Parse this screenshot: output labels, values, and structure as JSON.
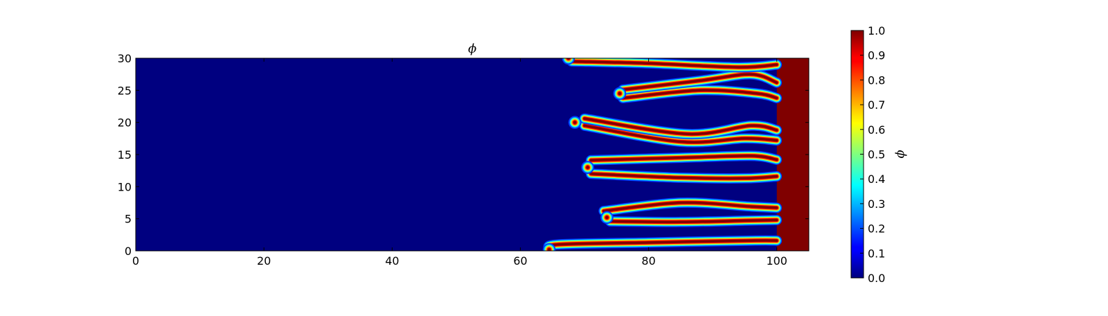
{
  "chart_data": {
    "type": "heatmap",
    "title": "ϕ",
    "xlabel": "",
    "ylabel": "",
    "xlim": [
      0,
      105
    ],
    "ylim": [
      0,
      30
    ],
    "x_ticks": [
      0,
      20,
      40,
      60,
      80,
      100
    ],
    "y_ticks": [
      0,
      5,
      10,
      15,
      20,
      25,
      30
    ],
    "x_tick_labels": [
      "0",
      "20",
      "40",
      "60",
      "80",
      "100"
    ],
    "y_tick_labels": [
      "0",
      "5",
      "10",
      "15",
      "20",
      "25",
      "30"
    ],
    "grid": false,
    "colormap": "jet",
    "background_value": 0.0,
    "filled_value": 1.0,
    "colorbar": {
      "label": "ϕ",
      "range": [
        0.0,
        1.0
      ],
      "ticks": [
        0.0,
        0.1,
        0.2,
        0.3,
        0.4,
        0.5,
        0.6,
        0.7,
        0.8,
        0.9,
        1.0
      ],
      "tick_labels": [
        "0.0",
        "0.1",
        "0.2",
        "0.3",
        "0.4",
        "0.5",
        "0.6",
        "0.7",
        "0.8",
        "0.9",
        "1.0"
      ]
    },
    "right_region_x_start": 100,
    "fingers": [
      {
        "points": [
          [
            100,
            1.6
          ],
          [
            96,
            1.6
          ],
          [
            80,
            1.3
          ],
          [
            66,
            1.0
          ],
          [
            64.5,
            0.4
          ]
        ],
        "tip": [
          64.5,
          0.2
        ]
      },
      {
        "points": [
          [
            100,
            4.8
          ],
          [
            95,
            4.7
          ],
          [
            85,
            4.5
          ],
          [
            74,
            4.6
          ]
        ],
        "tip": [
          73.5,
          5.2
        ]
      },
      {
        "points": [
          [
            100,
            6.7
          ],
          [
            96,
            6.9
          ],
          [
            85,
            7.5
          ],
          [
            73,
            6.2
          ]
        ],
        "tip": [
          73.5,
          5.2
        ]
      },
      {
        "points": [
          [
            100,
            11.6
          ],
          [
            95,
            11.3
          ],
          [
            85,
            11.4
          ],
          [
            71,
            12.0
          ]
        ],
        "tip": [
          70.5,
          13.0
        ]
      },
      {
        "points": [
          [
            100,
            14.2
          ],
          [
            96,
            14.8
          ],
          [
            85,
            14.5
          ],
          [
            71,
            14.1
          ]
        ],
        "tip": [
          70.5,
          13.0
        ]
      },
      {
        "points": [
          [
            100,
            17.2
          ],
          [
            95,
            17.5
          ],
          [
            85,
            17.0
          ],
          [
            70,
            19.5
          ]
        ],
        "tip": [
          68.5,
          20.0
        ]
      },
      {
        "points": [
          [
            100,
            18.8
          ],
          [
            96,
            19.5
          ],
          [
            86,
            18.2
          ],
          [
            70,
            20.6
          ]
        ],
        "tip": [
          68.5,
          20.0
        ]
      },
      {
        "points": [
          [
            100,
            23.8
          ],
          [
            97,
            24.5
          ],
          [
            88,
            25.0
          ],
          [
            76,
            23.8
          ]
        ],
        "tip": [
          75.5,
          24.5
        ]
      },
      {
        "points": [
          [
            100,
            26.2
          ],
          [
            96,
            27.5
          ],
          [
            88,
            26.5
          ],
          [
            76,
            25.1
          ]
        ],
        "tip": [
          75.5,
          24.5
        ]
      },
      {
        "points": [
          [
            100,
            29.0
          ],
          [
            94,
            28.6
          ],
          [
            80,
            29.2
          ],
          [
            68,
            29.5
          ]
        ],
        "tip": [
          67.5,
          30.0
        ]
      }
    ]
  }
}
